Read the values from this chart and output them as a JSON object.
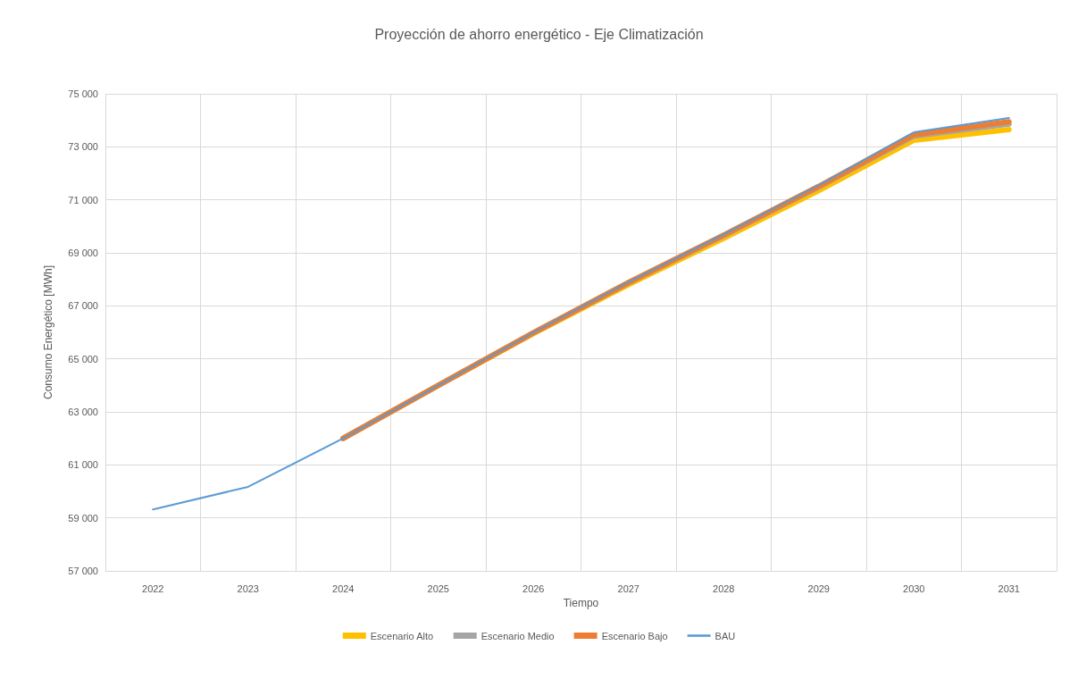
{
  "chart_data": {
    "type": "line",
    "title": "Proyección de ahorro energético - Eje Climatización",
    "xlabel": "Tiempo",
    "ylabel": "Consumo Energético [MWh]",
    "categories": [
      "2022",
      "2023",
      "2024",
      "2025",
      "2026",
      "2027",
      "2028",
      "2029",
      "2030",
      "2031"
    ],
    "series": [
      {
        "name": "Escenario Alto",
        "color": "#ffc000",
        "values": [
          null,
          null,
          62000,
          64000,
          65950,
          67800,
          69550,
          71350,
          73250,
          73650
        ]
      },
      {
        "name": "Escenario Medio",
        "color": "#a5a5a5",
        "values": [
          null,
          null,
          62000,
          64000,
          65980,
          67870,
          69650,
          71480,
          73410,
          73860
        ]
      },
      {
        "name": "Escenario Bajo",
        "color": "#ed7d31",
        "values": [
          null,
          null,
          62000,
          64000,
          65990,
          67880,
          69670,
          71510,
          73460,
          73950
        ]
      },
      {
        "name": "BAU",
        "color": "#5b9bd5",
        "values": [
          59320,
          60170,
          62000,
          64000,
          66000,
          67900,
          69700,
          71550,
          73550,
          74090
        ]
      }
    ],
    "ylim": [
      57000,
      75000
    ],
    "yticks": [
      {
        "value": 57000,
        "label": "57 000"
      },
      {
        "value": 59000,
        "label": "59 000"
      },
      {
        "value": 61000,
        "label": "61 000"
      },
      {
        "value": 63000,
        "label": "63 000"
      },
      {
        "value": 65000,
        "label": "65 000"
      },
      {
        "value": 67000,
        "label": "67 000"
      },
      {
        "value": 69000,
        "label": "69 000"
      },
      {
        "value": 71000,
        "label": "71 000"
      },
      {
        "value": 73000,
        "label": "73 000"
      },
      {
        "value": 75000,
        "label": "75 000"
      }
    ],
    "grid": true,
    "legend": "bottom",
    "marker": "none",
    "line_style": "solid"
  }
}
